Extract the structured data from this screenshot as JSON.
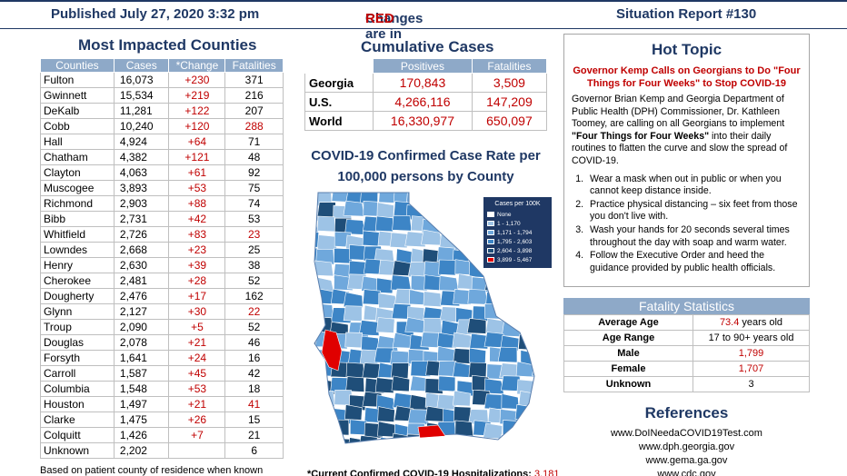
{
  "header": {
    "published": "Published July 27, 2020 3:32 pm",
    "changes_prefix": "Changes are in ",
    "changes_red": "RED",
    "report": "Situation Report #130"
  },
  "counties": {
    "title": "Most Impacted Counties",
    "columns": [
      "Counties",
      "Cases",
      "*Change",
      "Fatalities"
    ],
    "rows": [
      {
        "name": "Fulton",
        "cases": "16,073",
        "change": "+230",
        "fatalities": "371",
        "fat_red": false
      },
      {
        "name": "Gwinnett",
        "cases": "15,534",
        "change": "+219",
        "fatalities": "216",
        "fat_red": false
      },
      {
        "name": "DeKalb",
        "cases": "11,281",
        "change": "+122",
        "fatalities": "207",
        "fat_red": false
      },
      {
        "name": "Cobb",
        "cases": "10,240",
        "change": "+120",
        "fatalities": "288",
        "fat_red": true
      },
      {
        "name": "Hall",
        "cases": "4,924",
        "change": "+64",
        "fatalities": "71",
        "fat_red": false
      },
      {
        "name": "Chatham",
        "cases": "4,382",
        "change": "+121",
        "fatalities": "48",
        "fat_red": false
      },
      {
        "name": "Clayton",
        "cases": "4,063",
        "change": "+61",
        "fatalities": "92",
        "fat_red": false
      },
      {
        "name": "Muscogee",
        "cases": "3,893",
        "change": "+53",
        "fatalities": "75",
        "fat_red": false
      },
      {
        "name": "Richmond",
        "cases": "2,903",
        "change": "+88",
        "fatalities": "74",
        "fat_red": false
      },
      {
        "name": "Bibb",
        "cases": "2,731",
        "change": "+42",
        "fatalities": "53",
        "fat_red": false
      },
      {
        "name": "Whitfield",
        "cases": "2,726",
        "change": "+83",
        "fatalities": "23",
        "fat_red": true
      },
      {
        "name": "Lowndes",
        "cases": "2,668",
        "change": "+23",
        "fatalities": "25",
        "fat_red": false
      },
      {
        "name": "Henry",
        "cases": "2,630",
        "change": "+39",
        "fatalities": "38",
        "fat_red": false
      },
      {
        "name": "Cherokee",
        "cases": "2,481",
        "change": "+28",
        "fatalities": "52",
        "fat_red": false
      },
      {
        "name": "Dougherty",
        "cases": "2,476",
        "change": "+17",
        "fatalities": "162",
        "fat_red": false
      },
      {
        "name": "Glynn",
        "cases": "2,127",
        "change": "+30",
        "fatalities": "22",
        "fat_red": true
      },
      {
        "name": "Troup",
        "cases": "2,090",
        "change": "+5",
        "fatalities": "52",
        "fat_red": false
      },
      {
        "name": "Douglas",
        "cases": "2,078",
        "change": "+21",
        "fatalities": "46",
        "fat_red": false
      },
      {
        "name": "Forsyth",
        "cases": "1,641",
        "change": "+24",
        "fatalities": "16",
        "fat_red": false
      },
      {
        "name": "Carroll",
        "cases": "1,587",
        "change": "+45",
        "fatalities": "42",
        "fat_red": false
      },
      {
        "name": "Columbia",
        "cases": "1,548",
        "change": "+53",
        "fatalities": "18",
        "fat_red": false
      },
      {
        "name": "Houston",
        "cases": "1,497",
        "change": "+21",
        "fatalities": "41",
        "fat_red": true
      },
      {
        "name": "Clarke",
        "cases": "1,475",
        "change": "+26",
        "fatalities": "15",
        "fat_red": false
      },
      {
        "name": "Colquitt",
        "cases": "1,426",
        "change": "+7",
        "fatalities": "21",
        "fat_red": false
      },
      {
        "name": "Unknown",
        "cases": "2,202",
        "change": "",
        "fatalities": "6",
        "fat_red": false
      }
    ],
    "note": "Based on patient county of residence when known"
  },
  "cumulative": {
    "title": "Cumulative Cases",
    "columns": [
      "",
      "Positives",
      "Fatalities"
    ],
    "rows": [
      {
        "name": "Georgia",
        "positives": "170,843",
        "fatalities": "3,509"
      },
      {
        "name": "U.S.",
        "positives": "4,266,116",
        "fatalities": "147,209"
      },
      {
        "name": "World",
        "positives": "16,330,977",
        "fatalities": "650,097"
      }
    ]
  },
  "map": {
    "title_line1": "COVID-19 Confirmed Case Rate per",
    "title_line2": "100,000 persons by County",
    "legend_title": "Cases per 100K",
    "legend": [
      {
        "label": "None",
        "color": "#ffffff"
      },
      {
        "label": "1 - 1,170",
        "color": "#9dc3e6"
      },
      {
        "label": "1,171 - 1,794",
        "color": "#6fa8dc"
      },
      {
        "label": "1,795 - 2,603",
        "color": "#3d85c6"
      },
      {
        "label": "2,604 - 3,898",
        "color": "#1f4e79"
      },
      {
        "label": "3,899 - 5,467",
        "color": "#e00000"
      }
    ]
  },
  "hospitalizations": {
    "label": "*Current Confirmed COVID-19 Hospitalizations: ",
    "value": "3,181"
  },
  "hot_topic": {
    "title": "Hot Topic",
    "subtitle": "Governor Kemp Calls on Georgians to Do \"Four Things for Four Weeks\" to Stop COVID-19",
    "body_1": "Governor Brian Kemp and Georgia Department of Public Health (DPH) Commissioner, Dr. Kathleen Toomey, are calling on all Georgians to implement ",
    "body_bold": "\"Four Things for Four Weeks\"",
    "body_2": " into their daily routines to flatten the curve and slow the spread of COVID-19.",
    "items": [
      "Wear a mask when out in public or when you cannot keep distance inside.",
      "Practice physical distancing – six feet from those you don't live with.",
      "Wash your hands for 20 seconds several times throughout the day with soap and warm water.",
      "Follow the Executive Order and heed the guidance provided by public health officials."
    ]
  },
  "fatality_stats": {
    "title": "Fatality Statistics",
    "rows": [
      {
        "key": "Average Age",
        "value_red": "73.4",
        "value": " years old",
        "red": false
      },
      {
        "key": "Age Range",
        "value_red": "",
        "value": "17 to 90+ years old",
        "red": false
      },
      {
        "key": "Male",
        "value_red": "1,799",
        "value": "",
        "red": true
      },
      {
        "key": "Female",
        "value_red": "1,707",
        "value": "",
        "red": true
      },
      {
        "key": "Unknown",
        "value_red": "",
        "value": "3",
        "red": false
      }
    ]
  },
  "references": {
    "title": "References",
    "links": [
      "www.DoINeedaCOVID19Test.com",
      "www.dph.georgia.gov",
      "www.gema.ga.gov",
      "www.cdc.gov"
    ]
  },
  "colors": {
    "navy": "#1f3864",
    "red": "#c00000",
    "header_blue": "#8ea9c8"
  }
}
